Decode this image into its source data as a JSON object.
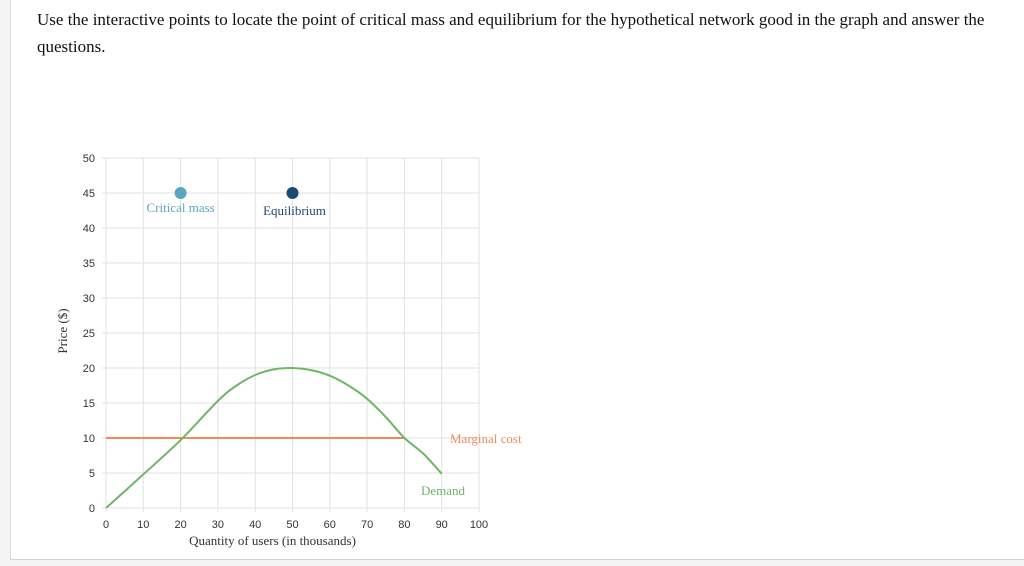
{
  "question_text": "Use the interactive points to locate the point of critical mass and equilibrium for the hypothetical network good in the graph and answer the questions.",
  "colors": {
    "demand": "#6db766",
    "marginal_cost": "#f08a5d",
    "critical_mass": "#5ba6bd",
    "equilibrium": "#1d4a72",
    "grid": "#e2e2e2"
  },
  "chart_data": {
    "type": "line",
    "xlabel": "Quantity of users (in thousands)",
    "ylabel": "Price ($)",
    "xlim": [
      0,
      100
    ],
    "ylim": [
      0,
      50
    ],
    "x_ticks": [
      0,
      10,
      20,
      30,
      40,
      50,
      60,
      70,
      80,
      90,
      100
    ],
    "y_ticks": [
      0,
      5,
      10,
      15,
      20,
      25,
      30,
      35,
      40,
      45,
      50
    ],
    "grid": true,
    "series": [
      {
        "name": "Demand",
        "x": [
          0,
          10,
          20,
          30,
          35,
          40,
          45,
          50,
          55,
          60,
          65,
          70,
          75,
          80,
          85,
          90
        ],
        "y": [
          0,
          4.8,
          9.7,
          15.3,
          17.5,
          19,
          19.8,
          20,
          19.7,
          18.9,
          17.5,
          15.6,
          13,
          10,
          7.8,
          4.9
        ]
      },
      {
        "name": "Marginal cost",
        "x": [
          0,
          90
        ],
        "y": [
          10,
          10
        ]
      }
    ],
    "points": [
      {
        "label": "Critical mass",
        "x": 20,
        "y": 45
      },
      {
        "label": "Equilibrium",
        "x": 50,
        "y": 45
      }
    ]
  }
}
